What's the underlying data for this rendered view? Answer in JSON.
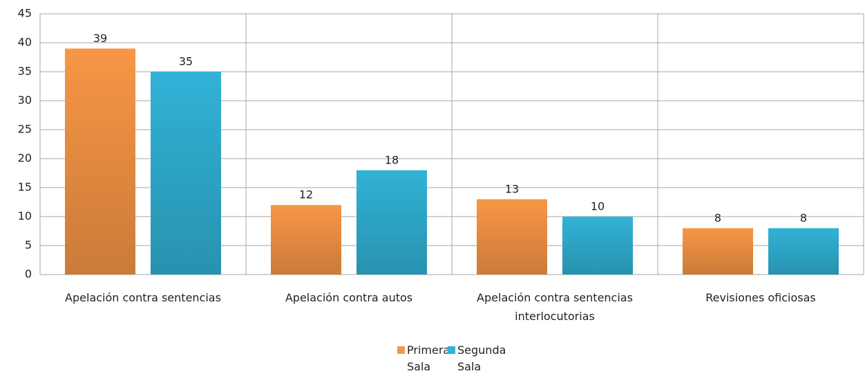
{
  "chart_data": {
    "type": "bar",
    "categories": [
      "Apelación contra sentencias",
      "Apelación contra autos",
      "Apelación contra sentencias interlocutorias",
      "Revisiones oficiosas"
    ],
    "series": [
      {
        "name": "Primera Sala",
        "color": "#f79646",
        "values": [
          39,
          12,
          13,
          8
        ]
      },
      {
        "name": "Segunda Sala",
        "color": "#31b2d6",
        "values": [
          35,
          18,
          10,
          8
        ]
      }
    ],
    "ylim": [
      0,
      45
    ],
    "yticks": [
      0,
      5,
      10,
      15,
      20,
      25,
      30,
      35,
      40,
      45
    ],
    "grid": true,
    "legend": "bottom"
  }
}
